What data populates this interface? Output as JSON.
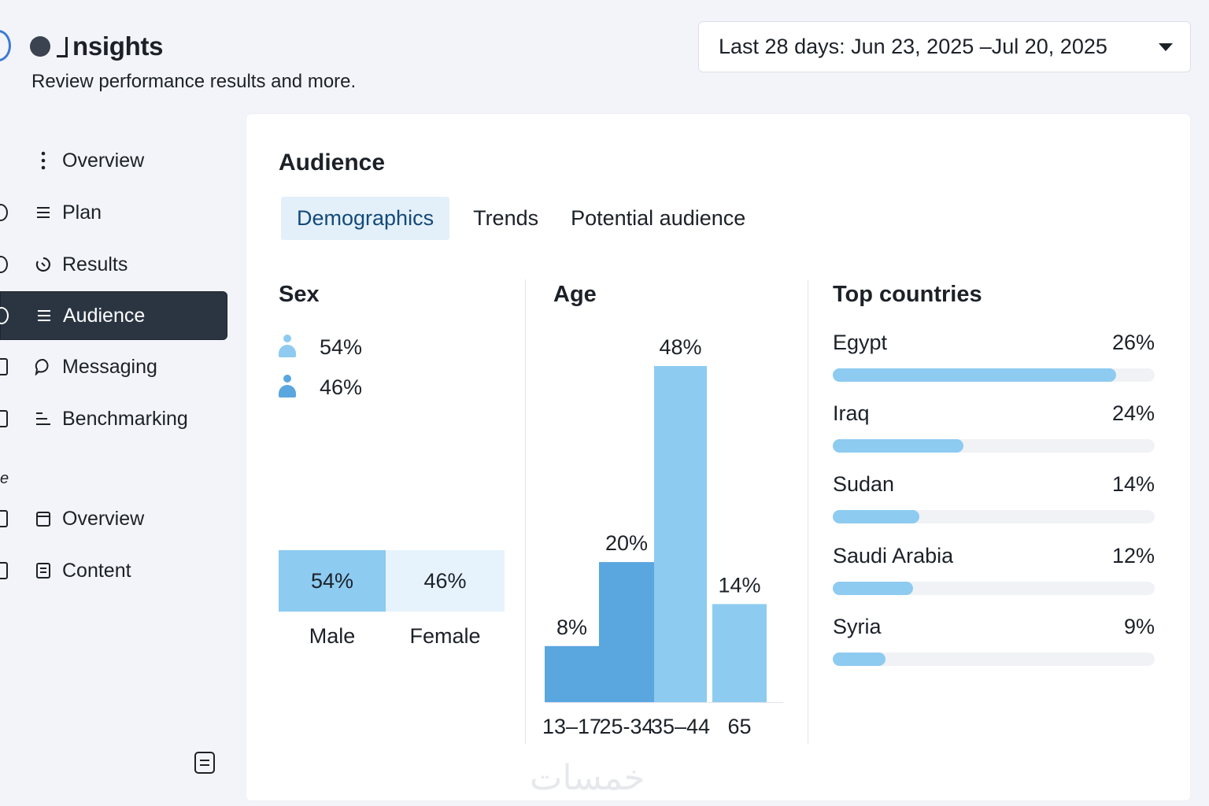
{
  "header": {
    "title": "nsights",
    "subtitle": "Review performance results and more.",
    "date_range": "Last 28 days: Jun 23, 2025 –Jul 20, 2025"
  },
  "sidebar": {
    "items": [
      {
        "label": "Overview",
        "icon": "more-vertical-icon",
        "active": false
      },
      {
        "label": "Plan",
        "icon": "list-icon",
        "active": false
      },
      {
        "label": "Results",
        "icon": "refresh-icon",
        "active": false
      },
      {
        "label": "Audience",
        "icon": "list-icon",
        "active": true
      },
      {
        "label": "Messaging",
        "icon": "chat-bubble-icon",
        "active": false
      },
      {
        "label": "Benchmarking",
        "icon": "bars-icon",
        "active": false
      },
      {
        "label": "Overview",
        "icon": "calendar-icon",
        "active": false
      },
      {
        "label": "Content",
        "icon": "document-icon",
        "active": false
      }
    ],
    "section_label": "e"
  },
  "card": {
    "title": "Audience",
    "tabs": [
      "Demographics",
      "Trends",
      "Potential audience"
    ],
    "active_tab": "Demographics"
  },
  "sex": {
    "title": "Sex",
    "male_pct": "54%",
    "female_pct": "46%",
    "male_label": "Male",
    "female_label": "Female",
    "male_value": 54,
    "female_value": 46
  },
  "age": {
    "title": "Age"
  },
  "countries": {
    "title": "Top countries",
    "items": [
      {
        "name": "Egypt",
        "pct": "26%",
        "value": 26,
        "fill": 0.88
      },
      {
        "name": "Iraq",
        "pct": "24%",
        "value": 24,
        "fill": 0.405
      },
      {
        "name": "Sudan",
        "pct": "14%",
        "value": 14,
        "fill": 0.27
      },
      {
        "name": "Saudi Arabia",
        "pct": "12%",
        "value": 12,
        "fill": 0.25
      },
      {
        "name": "Syria",
        "pct": "9%",
        "value": 9,
        "fill": 0.165
      }
    ]
  },
  "chart_data": {
    "type": "bar",
    "title": "Age",
    "categories": [
      "13–17",
      "25-34",
      "35–44",
      "65"
    ],
    "values": [
      8,
      20,
      48,
      14
    ],
    "value_labels": [
      "8%",
      "20%",
      "48%",
      "14%"
    ],
    "ylim": [
      0,
      48
    ],
    "colors": [
      "#5aa6df",
      "#5aa6df",
      "#8dcbf1",
      "#8dcbf1"
    ]
  },
  "watermark": "خمسات",
  "colors": {
    "accent": "#2b3542",
    "bar_light": "#8dcbf1",
    "bar_dark": "#5aa6df",
    "tab_active_bg": "#e3f0fa"
  }
}
